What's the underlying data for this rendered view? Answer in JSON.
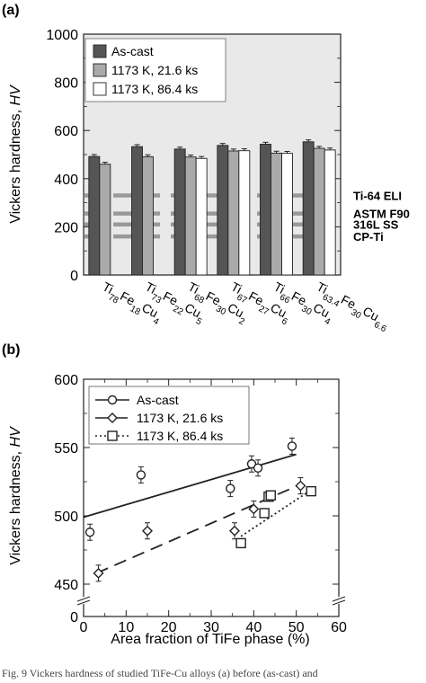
{
  "figure": {
    "caption": "Fig. 9   Vickers hardness of studied TiFe-Cu alloys (a) before (as-cast) and"
  },
  "chart_data": [
    {
      "type": "bar",
      "panel_label": "(a)",
      "ylabel": "Vickers hardness, HV",
      "ylabel_plain": "Vickers hardness, ",
      "ylabel_italic": "HV",
      "ylim": [
        0,
        1000
      ],
      "yticks": [
        0,
        200,
        400,
        600,
        800,
        1000
      ],
      "categories": [
        {
          "base": "Ti",
          "parts": [
            [
              "Ti",
              "78"
            ],
            [
              "Fe",
              "18"
            ],
            [
              "Cu",
              "4"
            ]
          ]
        },
        {
          "base": "Ti",
          "parts": [
            [
              "Ti",
              "73"
            ],
            [
              "Fe",
              "22"
            ],
            [
              "Cu",
              "5"
            ]
          ]
        },
        {
          "base": "Ti",
          "parts": [
            [
              "Ti",
              "68"
            ],
            [
              "Fe",
              "30"
            ],
            [
              "Cu",
              "2"
            ]
          ]
        },
        {
          "base": "Ti",
          "parts": [
            [
              "Ti",
              "67"
            ],
            [
              "Fe",
              "27"
            ],
            [
              "Cu",
              "6"
            ]
          ]
        },
        {
          "base": "Ti",
          "parts": [
            [
              "Ti",
              "66"
            ],
            [
              "Fe",
              "30"
            ],
            [
              "Cu",
              "4"
            ]
          ]
        },
        {
          "base": "Ti",
          "parts": [
            [
              "Ti",
              "63.4"
            ],
            [
              "Fe",
              "30"
            ],
            [
              "Cu",
              "6.6"
            ]
          ]
        }
      ],
      "category_labels": [
        "Ti78Fe18Cu4",
        "Ti73Fe22Cu5",
        "Ti68Fe30Cu2",
        "Ti67Fe27Cu6",
        "Ti66Fe30Cu4",
        "Ti63.4Fe30Cu6.6"
      ],
      "series": [
        {
          "name": "As-cast",
          "color": "#555555",
          "values": [
            492,
            533,
            523,
            538,
            543,
            553
          ]
        },
        {
          "name": "1173 K, 21.6 ks",
          "color": "#aaaaaa",
          "values": [
            460,
            491,
            490,
            515,
            506,
            526
          ]
        },
        {
          "name": "1173 K, 86.4 ks",
          "color": "#ffffff",
          "values": [
            null,
            null,
            484,
            516,
            505,
            519
          ]
        }
      ],
      "error": 8,
      "legend_position": "top-left",
      "reference_lines": [
        {
          "label": "Ti-64 ELI",
          "value": 330
        },
        {
          "label": "ASTM F90",
          "value": 255
        },
        {
          "label": "316L SS",
          "value": 210
        },
        {
          "label": "CP-Ti",
          "value": 160
        }
      ]
    },
    {
      "type": "scatter",
      "panel_label": "(b)",
      "xlabel": "Area fraction of TiFe phase (%)",
      "ylabel": "Vickers hardness, HV",
      "ylabel_plain": "Vickers hardness, ",
      "ylabel_italic": "HV",
      "xlim": [
        0,
        60
      ],
      "xticks": [
        0,
        10,
        20,
        30,
        40,
        50,
        60
      ],
      "ylim": [
        450,
        600
      ],
      "yticks": [
        0,
        450,
        500,
        550,
        600
      ],
      "axis_break": true,
      "legend_position": "top-left",
      "series": [
        {
          "name": "As-cast",
          "marker": "circle",
          "line": "solid",
          "x": [
            1.5,
            13.5,
            34.5,
            39.5,
            41,
            49
          ],
          "y": [
            488,
            530,
            520,
            538,
            535,
            551
          ],
          "fit": [
            [
              0,
              499
            ],
            [
              50,
              545
            ]
          ]
        },
        {
          "name": "1173 K, 21.6 ks",
          "marker": "diamond",
          "line": "dashed",
          "x": [
            3.5,
            15,
            35.5,
            40,
            51
          ],
          "y": [
            458,
            489,
            489,
            505,
            522
          ],
          "fit": [
            [
              3,
              458
            ],
            [
              51,
              523
            ]
          ]
        },
        {
          "name": "1173 K, 86.4 ks",
          "marker": "square",
          "line": "dotted",
          "x": [
            37,
            42.5,
            43.5,
            44,
            53.5
          ],
          "y": [
            480,
            502,
            514,
            515,
            518
          ],
          "fit": [
            [
              37,
              485
            ],
            [
              54,
              520
            ]
          ]
        }
      ]
    }
  ]
}
